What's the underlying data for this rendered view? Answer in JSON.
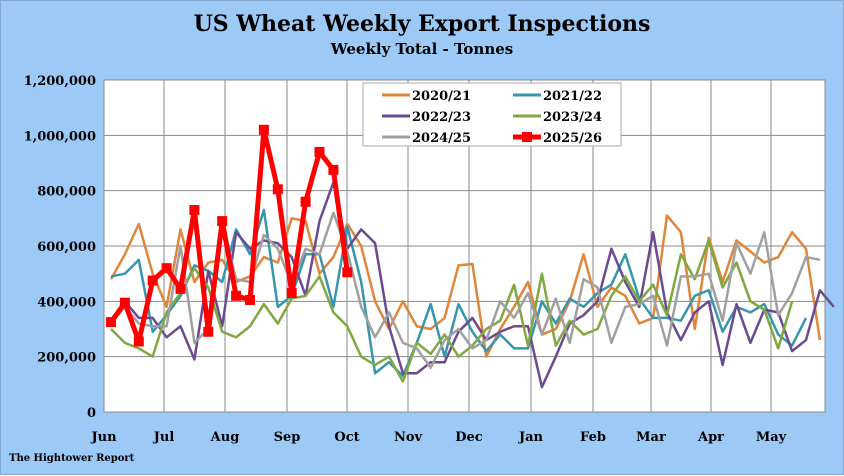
{
  "chart_data": {
    "type": "line",
    "title": "US Wheat Weekly Export Inspections",
    "subtitle": "Weekly Total - Tonnes",
    "credit": "The Hightower Report",
    "xlabel": "",
    "ylabel": "",
    "ylim": [
      0,
      1200000
    ],
    "yticks": [
      0,
      200000,
      400000,
      600000,
      800000,
      1000000,
      1200000
    ],
    "ytick_labels": [
      "0",
      "200,000",
      "400,000",
      "600,000",
      "800,000",
      "1,000,000",
      "1,200,000"
    ],
    "xtick_labels": [
      "Jun",
      "Jul",
      "Aug",
      "Sep",
      "Oct",
      "Nov",
      "Dec",
      "Jan",
      "Feb",
      "Mar",
      "Apr",
      "May"
    ],
    "grid": true,
    "legend": "top-center",
    "series": [
      {
        "name": "2020/21",
        "color": "#e0863a",
        "values": [
          480,
          570,
          680,
          500,
          380,
          660,
          470,
          540,
          550,
          470,
          490,
          560,
          540,
          700,
          690,
          500,
          560,
          680,
          600,
          400,
          300,
          400,
          310,
          300,
          340,
          530,
          535,
          200,
          300,
          380,
          470,
          280,
          300,
          400,
          570,
          380,
          450,
          420,
          320,
          340,
          710,
          650,
          300,
          630,
          470,
          620,
          580,
          540,
          560,
          650,
          590,
          260
        ]
      },
      {
        "name": "2021/22",
        "color": "#3596ae",
        "values": [
          490,
          500,
          550,
          290,
          350,
          420,
          530,
          510,
          470,
          660,
          570,
          730,
          380,
          420,
          570,
          570,
          380,
          670,
          470,
          140,
          180,
          130,
          250,
          390,
          200,
          390,
          290,
          220,
          280,
          230,
          230,
          400,
          320,
          410,
          380,
          430,
          460,
          570,
          410,
          340,
          340,
          330,
          420,
          440,
          290,
          380,
          360,
          390,
          280,
          240,
          340
        ]
      },
      {
        "name": "2022/23",
        "color": "#6b4b8f",
        "values": [
          310,
          400,
          340,
          340,
          270,
          310,
          190,
          510,
          310,
          650,
          590,
          620,
          610,
          560,
          420,
          690,
          830,
          590,
          660,
          610,
          310,
          140,
          140,
          180,
          180,
          290,
          340,
          260,
          290,
          310,
          310,
          90,
          200,
          320,
          350,
          400,
          590,
          470,
          380,
          650,
          360,
          260,
          360,
          400,
          170,
          390,
          250,
          370,
          360,
          220,
          260,
          440,
          380
        ]
      },
      {
        "name": "2023/24",
        "color": "#7fa840",
        "values": [
          300,
          250,
          230,
          200,
          360,
          430,
          520,
          450,
          290,
          270,
          310,
          390,
          320,
          410,
          420,
          490,
          360,
          310,
          200,
          170,
          200,
          110,
          250,
          210,
          280,
          200,
          240,
          300,
          330,
          460,
          240,
          500,
          240,
          330,
          280,
          300,
          420,
          490,
          400,
          460,
          350,
          570,
          480,
          620,
          450,
          540,
          400,
          370,
          230,
          400
        ]
      },
      {
        "name": "2024/25",
        "color": "#a0a0a0",
        "values": [
          320,
          380,
          320,
          310,
          310,
          600,
          250,
          300,
          680,
          480,
          470,
          640,
          590,
          460,
          590,
          570,
          720,
          580,
          380,
          270,
          360,
          250,
          230,
          160,
          260,
          300,
          230,
          260,
          400,
          340,
          430,
          280,
          410,
          250,
          480,
          450,
          250,
          380,
          390,
          420,
          240,
          490,
          490,
          500,
          330,
          610,
          500,
          650,
          350,
          430,
          560,
          550
        ]
      },
      {
        "name": "2025/26",
        "color": "#ff0000",
        "markers": true,
        "values": [
          325,
          395,
          255,
          475,
          520,
          445,
          730,
          290,
          690,
          420,
          405,
          1020,
          805,
          430,
          760,
          940,
          875,
          505
        ]
      }
    ],
    "value_units": "thousand tonnes"
  }
}
